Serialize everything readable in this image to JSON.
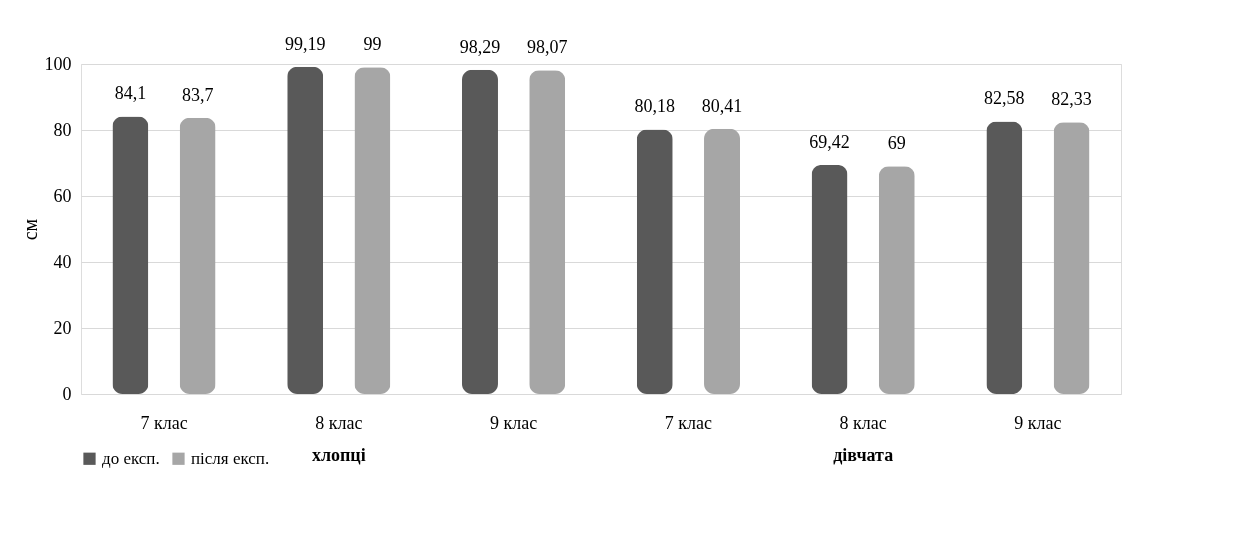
{
  "chart_data": {
    "type": "bar",
    "ylabel": "см",
    "categories": [
      "7 клас",
      "8 клас",
      "9 клас",
      "7  клас",
      "8  клас",
      "9  клас"
    ],
    "annotations": [
      "хлопці",
      "дівчата"
    ],
    "series": [
      {
        "name": "до експ.",
        "color": "#595959",
        "values": [
          84.1,
          99.19,
          98.29,
          80.18,
          69.42,
          82.58
        ],
        "value_labels": [
          "84,1",
          "99,19",
          "98,29",
          "80,18",
          "69,42",
          "82,58"
        ]
      },
      {
        "name": "після експ.",
        "color": "#a6a6a6",
        "values": [
          83.7,
          99,
          98.07,
          80.41,
          69,
          82.33
        ],
        "value_labels": [
          "83,7",
          "99",
          "98,07",
          "80,41",
          "69",
          "82,33"
        ]
      }
    ],
    "ylim": [
      0,
      100
    ],
    "yticks": [
      0,
      20,
      40,
      60,
      80,
      100
    ],
    "grid": "y",
    "legend": "bottom"
  }
}
